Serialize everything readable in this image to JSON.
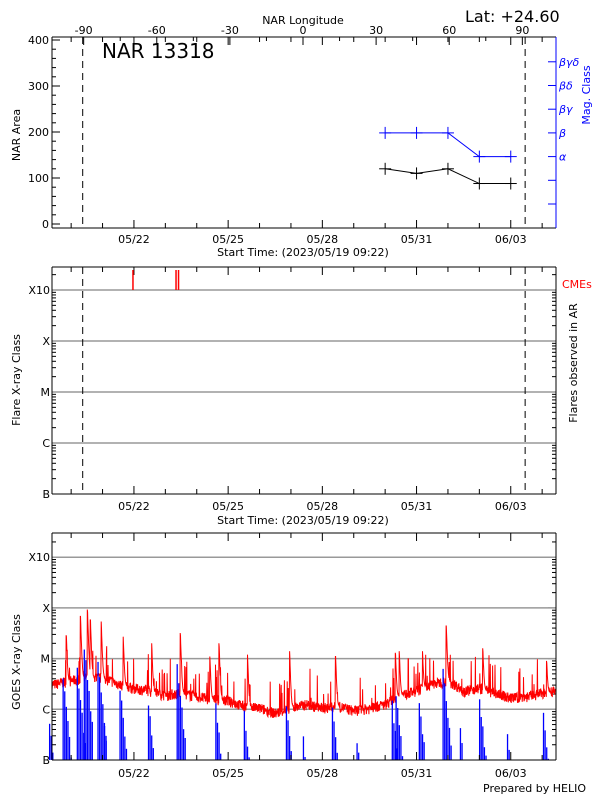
{
  "header": {
    "latitude_label": "Lat: +24.60",
    "region_label": "NAR 13318",
    "prepared_by": "Prepared by HELIO"
  },
  "colors": {
    "area": "#000000",
    "mag_class": "#0000ff",
    "cme": "#ff0000",
    "goes_long": "#ff0000",
    "goes_short": "#0000ff",
    "grid": "#999999"
  },
  "chart_data": [
    {
      "type": "line",
      "title": "NAR 13318",
      "xlabel": "Start Time: (2023/05/19 09:22)",
      "ylabel": "NAR Area",
      "y2label": "Mag. Class",
      "toplabel": "NAR Longitude",
      "x_start": "2023-05-19T09:22",
      "xlim": [
        "2023-05-19T09:22",
        "2023-06-04T10:40"
      ],
      "x_tick_labels": [
        "05/22",
        "05/25",
        "05/28",
        "05/31",
        "06/03"
      ],
      "top_tick_labels": [
        "-90",
        "-60",
        "-30",
        "0",
        "30",
        "60",
        "90"
      ],
      "ylim": [
        0,
        400
      ],
      "y_tick_labels": [
        "0",
        "100",
        "200",
        "300",
        "400"
      ],
      "mag_class_levels": [
        "",
        "",
        "α",
        "β",
        "βγ",
        "βδ",
        "βγδ"
      ],
      "limb_markers": [
        "2023-05-20T08:50",
        "2023-06-03T11:00"
      ],
      "series": [
        {
          "name": "NAR Area",
          "x": [
            "2023-05-30T00:00",
            "2023-05-31T00:00",
            "2023-06-01T00:00",
            "2023-06-02T00:00",
            "2023-06-03T00:00"
          ],
          "values": [
            120,
            110,
            120,
            88,
            88
          ]
        },
        {
          "name": "Mag. Class",
          "x": [
            "2023-05-30T00:00",
            "2023-05-31T00:00",
            "2023-06-01T00:00",
            "2023-06-02T00:00",
            "2023-06-03T00:00"
          ],
          "values": [
            "β",
            "β",
            "β",
            "α",
            "α"
          ]
        }
      ]
    },
    {
      "type": "bar",
      "xlabel": "Start Time: (2023/05/19 09:22)",
      "ylabel": "Flare X-ray Class",
      "y2label": "Flares observed in AR",
      "y_tick_labels": [
        "B",
        "C",
        "M",
        "X",
        "X10"
      ],
      "cme_label": "CMEs",
      "cme_times": [
        "2023-05-21T23:15",
        "2023-05-23T08:10",
        "2023-05-23T10:05"
      ],
      "flares": [],
      "grid": true
    },
    {
      "type": "line",
      "ylabel": "GOES X-ray Class",
      "y_scale": "log",
      "ylim": [
        1e-07,
        0.003
      ],
      "y_tick_labels": [
        "B",
        "C",
        "M",
        "X",
        "X10"
      ],
      "grid": true,
      "series": [
        {
          "channel": "long",
          "baseline": [
            [
              "2023-05-19T09:22",
              3e-06
            ],
            [
              "2023-05-19T12:00",
              3e-06
            ],
            [
              "2023-05-20T00:00",
              3.5e-06
            ],
            [
              "2023-05-20T12:00",
              4e-06
            ],
            [
              "2023-05-21T00:00",
              4e-06
            ],
            [
              "2023-05-21T12:00",
              3e-06
            ],
            [
              "2023-05-22T00:00",
              2.5e-06
            ],
            [
              "2023-05-22T12:00",
              2.2e-06
            ],
            [
              "2023-05-23T00:00",
              1.8e-06
            ],
            [
              "2023-05-23T12:00",
              2e-06
            ],
            [
              "2023-05-24T00:00",
              1.7e-06
            ],
            [
              "2023-05-24T12:00",
              1.5e-06
            ],
            [
              "2023-05-25T00:00",
              1.4e-06
            ],
            [
              "2023-05-25T12:00",
              1.1e-06
            ],
            [
              "2023-05-26T00:00",
              1e-06
            ],
            [
              "2023-05-26T12:00",
              8e-07
            ],
            [
              "2023-05-27T00:00",
              1e-06
            ],
            [
              "2023-05-27T12:00",
              1.2e-06
            ],
            [
              "2023-05-28T00:00",
              1e-06
            ],
            [
              "2023-05-28T12:00",
              1.1e-06
            ],
            [
              "2023-05-29T00:00",
              9e-07
            ],
            [
              "2023-05-29T12:00",
              1e-06
            ],
            [
              "2023-05-30T00:00",
              1.2e-06
            ],
            [
              "2023-05-30T12:00",
              1.8e-06
            ],
            [
              "2023-05-31T00:00",
              2.2e-06
            ],
            [
              "2023-05-31T12:00",
              3e-06
            ],
            [
              "2023-06-01T00:00",
              3.5e-06
            ],
            [
              "2023-06-01T12:00",
              2.2e-06
            ],
            [
              "2023-06-02T00:00",
              2.5e-06
            ],
            [
              "2023-06-02T12:00",
              2e-06
            ],
            [
              "2023-06-03T00:00",
              1.6e-06
            ],
            [
              "2023-06-03T12:00",
              1.7e-06
            ],
            [
              "2023-06-04T00:00",
              2e-06
            ],
            [
              "2023-06-04T10:40",
              2.2e-06
            ]
          ],
          "peaks": [
            [
              "2023-05-19T20:20",
              2.9e-05
            ],
            [
              "2023-05-20T07:10",
              6.8e-05
            ],
            [
              "2023-05-20T12:30",
              9.3e-05
            ],
            [
              "2023-05-20T14:45",
              5.9e-05
            ],
            [
              "2023-05-20T23:00",
              5.4e-05
            ],
            [
              "2023-05-21T15:50",
              2.7e-05
            ],
            [
              "2023-05-22T13:35",
              2e-05
            ],
            [
              "2023-05-23T11:30",
              3.2e-05
            ],
            [
              "2023-05-24T10:05",
              1.1e-05
            ],
            [
              "2023-05-24T17:05",
              2e-05
            ],
            [
              "2023-05-25T14:50",
              1.2e-05
            ],
            [
              "2023-05-26T23:00",
              1.4e-05
            ],
            [
              "2023-05-28T10:10",
              1.1e-05
            ],
            [
              "2023-05-30T07:55",
              1.3e-05
            ],
            [
              "2023-05-30T10:50",
              1.4e-05
            ],
            [
              "2023-05-31T04:35",
              1.4e-05
            ],
            [
              "2023-05-31T22:45",
              4.5e-05
            ],
            [
              "2023-06-02T02:40",
              1.6e-05
            ],
            [
              "2023-06-04T03:30",
              9e-06
            ]
          ]
        },
        {
          "channel": "short",
          "peaks": [
            [
              "2023-05-19T10:00",
              6e-07
            ],
            [
              "2023-05-19T20:20",
              4.7e-06
            ],
            [
              "2023-05-20T07:10",
              7e-06
            ],
            [
              "2023-05-20T12:30",
              1.9e-05
            ],
            [
              "2023-05-20T23:00",
              1.1e-05
            ],
            [
              "2023-05-21T04:00",
              5e-07
            ],
            [
              "2023-05-21T15:50",
              3e-06
            ],
            [
              "2023-05-22T13:35",
              1.5e-06
            ],
            [
              "2023-05-23T11:30",
              9e-06
            ],
            [
              "2023-05-24T17:05",
              1.5e-06
            ],
            [
              "2023-05-25T14:50",
              1e-06
            ],
            [
              "2023-05-26T23:00",
              1.5e-06
            ],
            [
              "2023-05-27T12:00",
              3e-07
            ],
            [
              "2023-05-28T10:10",
              1.3e-06
            ],
            [
              "2023-05-29T05:00",
              3e-07
            ],
            [
              "2023-05-30T07:55",
              1.5e-06
            ],
            [
              "2023-05-30T10:50",
              2.5e-06
            ],
            [
              "2023-05-31T04:35",
              1.8e-06
            ],
            [
              "2023-05-31T22:45",
              7e-06
            ],
            [
              "2023-06-01T12:00",
              5e-07
            ],
            [
              "2023-06-02T02:40",
              2e-06
            ],
            [
              "2023-06-03T00:00",
              4e-07
            ],
            [
              "2023-06-04T03:30",
              1e-06
            ]
          ]
        }
      ]
    }
  ]
}
